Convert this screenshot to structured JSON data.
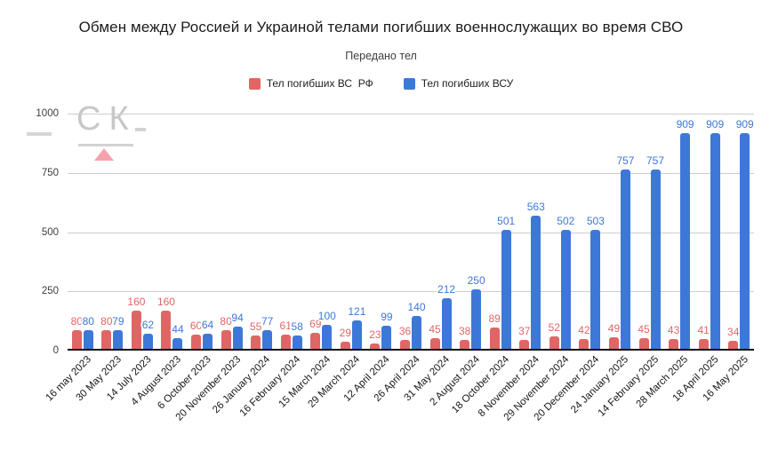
{
  "title": "Обмен между Россией и Украиной телами погибших военнослужащих во время СВО",
  "subtitle": "Передано тел",
  "watermark": {
    "text": "СК"
  },
  "chart_data": {
    "type": "bar",
    "title": "Обмен между Россией и Украиной телами погибших военнослужащих во время СВО",
    "subtitle": "Передано тел",
    "categories": [
      "16 may 2023",
      "30 May 2023",
      "14 July 2023",
      "4 August 2023",
      "6 October 2023",
      "20 November 2023",
      "26 January 2024",
      "16 February 2024",
      "15 March 2024",
      "29 March 2024",
      "12 April 2024",
      "26 April 2024",
      "31 May 2024",
      "2 August 2024",
      "18 October 2024",
      "8 November 2024",
      "29 November 2024",
      "20 December 2024",
      "24 January 2025",
      "14 February 2025",
      "28 March 2025",
      "18 April 2025",
      "16 May 2025"
    ],
    "series": [
      {
        "name": "Тел погибших ВС  РФ",
        "color": "#e06666",
        "values": [
          80,
          80,
          160,
          160,
          60,
          80,
          55,
          61,
          69,
          29,
          23,
          36,
          45,
          38,
          89,
          37,
          52,
          42,
          49,
          45,
          43,
          41,
          34
        ]
      },
      {
        "name": "Тел погибших ВСУ",
        "color": "#3d78d8",
        "values": [
          80,
          79,
          62,
          44,
          64,
          94,
          77,
          58,
          100,
          121,
          99,
          140,
          212,
          250,
          501,
          563,
          502,
          503,
          757,
          757,
          909,
          909,
          909
        ]
      }
    ],
    "ylim": [
      0,
      1000
    ],
    "yticks": [
      0,
      250,
      500,
      750,
      1000
    ],
    "grid": true,
    "legend_position": "top"
  }
}
